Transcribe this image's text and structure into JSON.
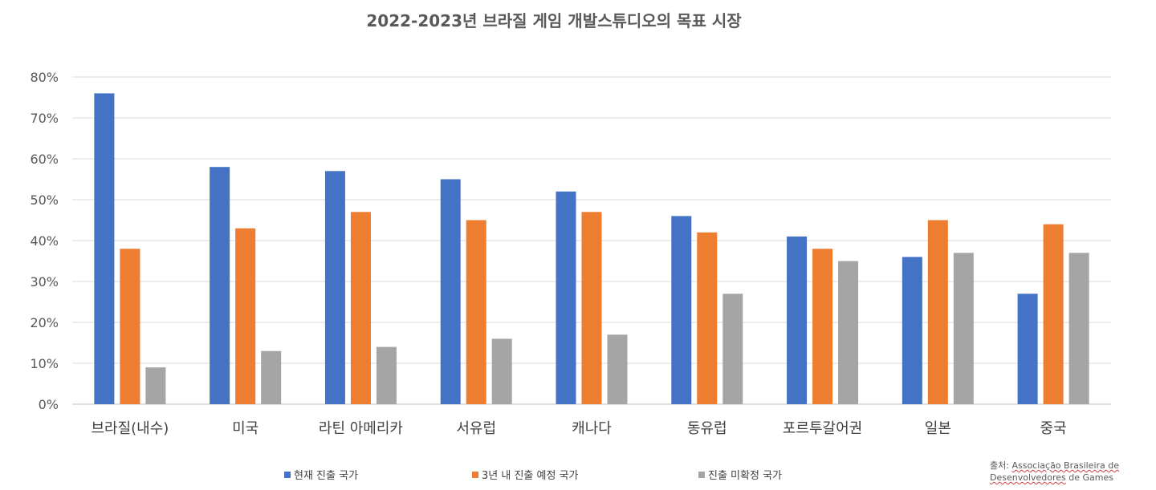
{
  "chart_data": {
    "type": "bar",
    "title": "2022-2023년 브라질 게임 개발스튜디오의 목표 시장",
    "categories": [
      "브라질(내수)",
      "미국",
      "라틴 아메리카",
      "서유럽",
      "캐나다",
      "동유럽",
      "포르투갈어권",
      "일본",
      "중국"
    ],
    "series": [
      {
        "name": "현재 진출 국가",
        "color": "#4472C4",
        "values": [
          76,
          58,
          57,
          55,
          52,
          46,
          41,
          36,
          27
        ]
      },
      {
        "name": "3년 내 진출 예정 국가",
        "color": "#ED7D31",
        "values": [
          38,
          43,
          47,
          45,
          47,
          42,
          38,
          45,
          44
        ]
      },
      {
        "name": "진출 미확정 국가",
        "color": "#A5A5A5",
        "values": [
          9,
          13,
          14,
          16,
          17,
          27,
          35,
          37,
          37
        ]
      }
    ],
    "yticks": [
      "0%",
      "10%",
      "20%",
      "30%",
      "40%",
      "50%",
      "60%",
      "70%",
      "80%"
    ],
    "ylim": [
      0,
      80
    ],
    "grid": true,
    "legend_position": "bottom"
  },
  "source": {
    "prefix": "출처: ",
    "line1": "Associação Brasileira de",
    "line2_underlined": "Desenvolvedores",
    "line2_rest": " de Games"
  }
}
